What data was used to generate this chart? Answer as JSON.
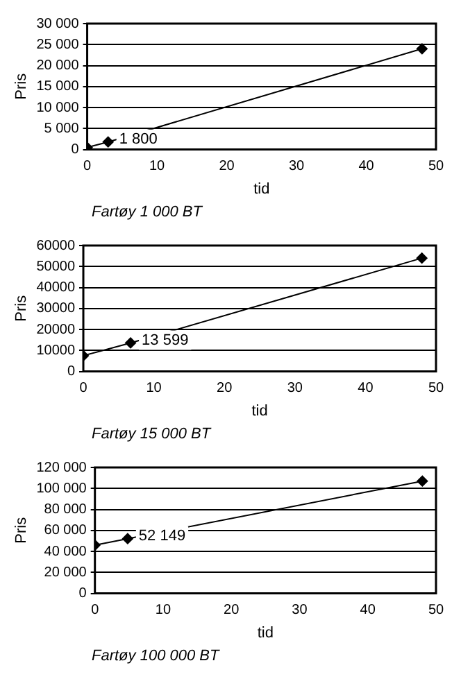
{
  "chart_data": [
    {
      "type": "line",
      "xlabel": "tid",
      "ylabel": "Pris",
      "annotations": [
        "Fartøy 1 000 BT"
      ],
      "x": [
        0,
        3,
        48
      ],
      "series": [
        {
          "color": "#000000",
          "values": [
            500,
            1800,
            24000
          ],
          "value_labels": [
            null,
            "1 800",
            null
          ]
        }
      ],
      "xlim": [
        0,
        50
      ],
      "xticks": [
        0,
        10,
        20,
        30,
        40,
        50
      ],
      "ylim": [
        0,
        30000
      ],
      "yticks": [
        0,
        {
          "value": 5000,
          "label": "5 000"
        },
        {
          "value": 10000,
          "label": "10 000"
        },
        {
          "value": 15000,
          "label": "15 000"
        },
        {
          "value": 20000,
          "label": "20 000"
        },
        {
          "value": 25000,
          "label": "25 000"
        },
        {
          "value": 30000,
          "label": "30 000"
        }
      ],
      "grid": "y",
      "legend": false,
      "marker": "diamond",
      "line_style": "solid"
    },
    {
      "type": "line",
      "xlabel": "tid",
      "ylabel": "Pris",
      "annotations": [
        "Fartøy 15 000 BT"
      ],
      "x": [
        0,
        6.7,
        48
      ],
      "series": [
        {
          "color": "#000000",
          "values": [
            7500,
            13599,
            54000
          ],
          "value_labels": [
            null,
            "13 599",
            null
          ]
        }
      ],
      "xlim": [
        0,
        50
      ],
      "xticks": [
        0,
        10,
        20,
        30,
        40,
        50
      ],
      "ylim": [
        0,
        60000
      ],
      "yticks": [
        0,
        10000,
        20000,
        30000,
        40000,
        50000,
        60000
      ],
      "grid": "y",
      "legend": false,
      "marker": "diamond",
      "line_style": "solid"
    },
    {
      "type": "line",
      "xlabel": "tid",
      "ylabel": "Pris",
      "annotations": [
        "Fartøy 100 000 BT"
      ],
      "x": [
        0,
        4.8,
        48
      ],
      "series": [
        {
          "color": "#000000",
          "values": [
            46000,
            52149,
            107000
          ],
          "value_labels": [
            null,
            "52 149",
            null
          ]
        }
      ],
      "xlim": [
        0,
        50
      ],
      "xticks": [
        0,
        10,
        20,
        30,
        40,
        50
      ],
      "ylim": [
        0,
        120000
      ],
      "yticks": [
        0,
        {
          "value": 20000,
          "label": "20 000"
        },
        {
          "value": 40000,
          "label": "40 000"
        },
        {
          "value": 60000,
          "label": "60 000"
        },
        {
          "value": 80000,
          "label": "80 000"
        },
        {
          "value": 100000,
          "label": "100 000"
        },
        {
          "value": 120000,
          "label": "120 000"
        }
      ],
      "grid": "y",
      "legend": false,
      "marker": "diamond",
      "line_style": "solid"
    }
  ]
}
